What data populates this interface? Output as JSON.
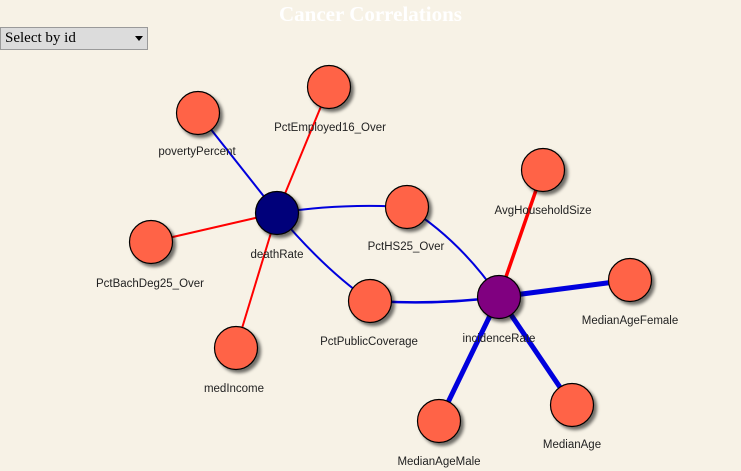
{
  "title": "Cancer Correlations",
  "select": {
    "value": "Select by id"
  },
  "colors": {
    "background": "#f7f2e6",
    "leaf_node": "#ff6347",
    "death_rate_node": "#00007a",
    "incidence_rate_node": "#800080",
    "positive_link": "#ff0000",
    "negative_link": "#0000dd"
  },
  "nodes": {
    "deathRate": "deathRate",
    "incidenceRate": "incidenceRate",
    "povertyPercent": "povertyPercent",
    "PctEmployed16_Over": "PctEmployed16_Over",
    "PctBachDeg25_Over": "PctBachDeg25_Over",
    "medIncome": "medIncome",
    "PctHS25_Over": "PctHS25_Over",
    "PctPublicCoverage": "PctPublicCoverage",
    "AvgHouseholdSize": "AvgHouseholdSize",
    "MedianAgeFemale": "MedianAgeFemale",
    "MedianAge": "MedianAge",
    "MedianAgeMale": "MedianAgeMale"
  }
}
